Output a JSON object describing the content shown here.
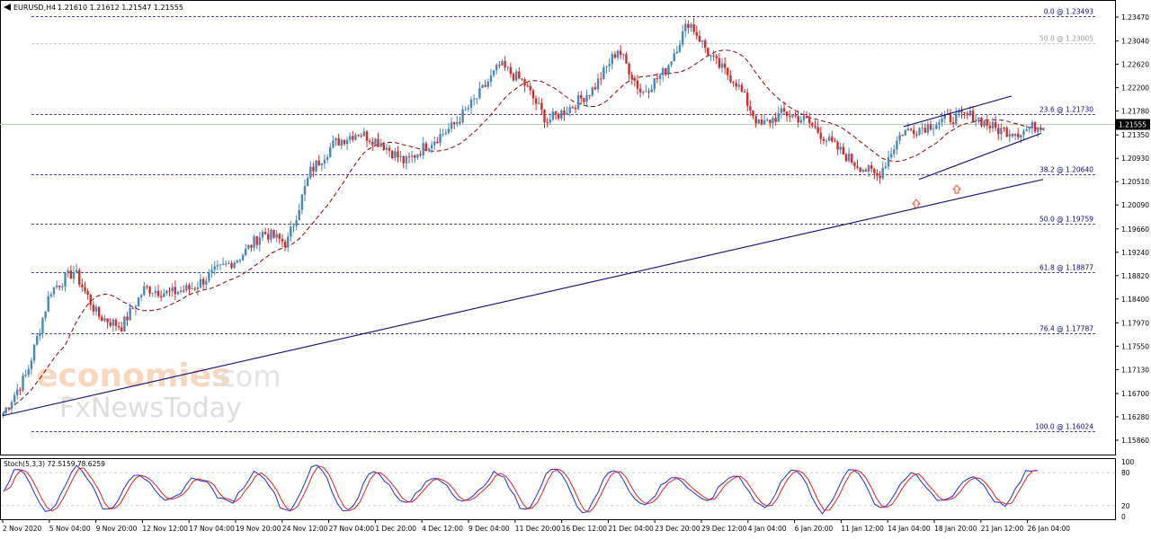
{
  "header": {
    "symbol": "EURUSD,H4",
    "ohlc": "1.21610 1.21612 1.21547 1.21555"
  },
  "price_axis": {
    "ticks": [
      "1.23470",
      "1.23040",
      "1.22620",
      "1.22200",
      "1.21780",
      "1.21350",
      "1.20930",
      "1.20510",
      "1.20090",
      "1.19660",
      "1.19240",
      "1.18820",
      "1.18400",
      "1.17970",
      "1.17550",
      "1.17130",
      "1.16700",
      "1.16280",
      "1.15860"
    ],
    "current_price": "1.21555"
  },
  "fib_levels": [
    {
      "label": "0.0 @ 1.23493",
      "price": 1.23493,
      "muted": false
    },
    {
      "label": "50.0 @ 1.23005",
      "price": 1.23005,
      "muted": true
    },
    {
      "label": "23.6 @ 1.21730",
      "price": 1.2173,
      "muted": false
    },
    {
      "label": "38.2 @ 1.20640",
      "price": 1.2064,
      "muted": false
    },
    {
      "label": "50.0 @ 1.19759",
      "price": 1.19759,
      "muted": false
    },
    {
      "label": "61.8 @ 1.18877",
      "price": 1.18877,
      "muted": false
    },
    {
      "label": "76.4 @ 1.17787",
      "price": 1.17787,
      "muted": false
    },
    {
      "label": "100.0 @ 1.16024",
      "price": 1.16024,
      "muted": false
    }
  ],
  "time_axis": [
    "2 Nov 2020",
    "5 Nov 04:00",
    "9 Nov 20:00",
    "12 Nov 12:00",
    "17 Nov 04:00",
    "19 Nov 20:00",
    "24 Nov 12:00",
    "27 Nov 04:00",
    "1 Dec 20:00",
    "4 Dec 12:00",
    "9 Dec 04:00",
    "11 Dec 20:00",
    "16 Dec 12:00",
    "21 Dec 04:00",
    "23 Dec 20:00",
    "29 Dec 12:00",
    "4 Jan 04:00",
    "6 Jan 20:00",
    "11 Jan 12:00",
    "14 Jan 04:00",
    "18 Jan 20:00",
    "21 Jan 12:00",
    "26 Jan 04:00"
  ],
  "stoch": {
    "label": "Stoch(5,3,3) 72.5159 78.6259",
    "ticks": [
      "100",
      "80",
      "20",
      "0"
    ]
  },
  "watermark": {
    "line1": "economies",
    "line1b": ".com",
    "line2": "FxNewsToday"
  },
  "chart_data": {
    "type": "candlestick",
    "symbol": "EURUSD",
    "timeframe": "H4",
    "ylim": [
      1.1565,
      1.2368
    ],
    "anchors": [
      {
        "t": "2 Nov 2020",
        "price": 1.1635
      },
      {
        "t": "4 Nov",
        "price": 1.1705
      },
      {
        "t": "5 Nov 04:00",
        "price": 1.1855
      },
      {
        "t": "9 Nov",
        "price": 1.189
      },
      {
        "t": "10 Nov",
        "price": 1.181
      },
      {
        "t": "12 Nov",
        "price": 1.179
      },
      {
        "t": "16 Nov",
        "price": 1.186
      },
      {
        "t": "19 Nov",
        "price": 1.185
      },
      {
        "t": "20 Nov",
        "price": 1.186
      },
      {
        "t": "24 Nov",
        "price": 1.189
      },
      {
        "t": "26 Nov",
        "price": 1.1915
      },
      {
        "t": "27 Nov",
        "price": 1.196
      },
      {
        "t": "30 Nov",
        "price": 1.194
      },
      {
        "t": "1 Dec",
        "price": 1.207
      },
      {
        "t": "2 Dec",
        "price": 1.212
      },
      {
        "t": "4 Dec",
        "price": 1.214
      },
      {
        "t": "7 Dec",
        "price": 1.212
      },
      {
        "t": "9 Dec",
        "price": 1.2085
      },
      {
        "t": "11 Dec",
        "price": 1.212
      },
      {
        "t": "15 Dec",
        "price": 1.215
      },
      {
        "t": "16 Dec",
        "price": 1.22
      },
      {
        "t": "17 Dec",
        "price": 1.226
      },
      {
        "t": "21 Dec",
        "price": 1.223
      },
      {
        "t": "22 Dec",
        "price": 1.216
      },
      {
        "t": "23 Dec",
        "price": 1.2185
      },
      {
        "t": "28 Dec",
        "price": 1.222
      },
      {
        "t": "30 Dec",
        "price": 1.229
      },
      {
        "t": "31 Dec",
        "price": 1.221
      },
      {
        "t": "4 Jan",
        "price": 1.225
      },
      {
        "t": "6 Jan",
        "price": 1.234
      },
      {
        "t": "7 Jan",
        "price": 1.227
      },
      {
        "t": "8 Jan",
        "price": 1.223
      },
      {
        "t": "11 Jan",
        "price": 1.215
      },
      {
        "t": "12 Jan",
        "price": 1.2175
      },
      {
        "t": "13 Jan",
        "price": 1.216
      },
      {
        "t": "14 Jan",
        "price": 1.212
      },
      {
        "t": "15 Jan",
        "price": 1.2085
      },
      {
        "t": "18 Jan",
        "price": 1.206
      },
      {
        "t": "19 Jan",
        "price": 1.214
      },
      {
        "t": "20 Jan",
        "price": 1.215
      },
      {
        "t": "21 Jan",
        "price": 1.2165
      },
      {
        "t": "22 Jan",
        "price": 1.217
      },
      {
        "t": "25 Jan",
        "price": 1.2145
      },
      {
        "t": "26 Jan",
        "price": 1.214
      },
      {
        "t": "26 Jan 04:00",
        "price": 1.21555
      }
    ],
    "moving_average": "red dashed",
    "trendlines": [
      "long-term rising support",
      "rising channel upper",
      "rising channel lower"
    ],
    "arrows": [
      "up at 15 Jan low",
      "up at 20 Jan low"
    ],
    "colors": {
      "up": "#4a86b8",
      "down": "#d42a2a",
      "fib": "#0a0a80",
      "trend": "#0a0a80",
      "ma": "#8b0000"
    }
  }
}
